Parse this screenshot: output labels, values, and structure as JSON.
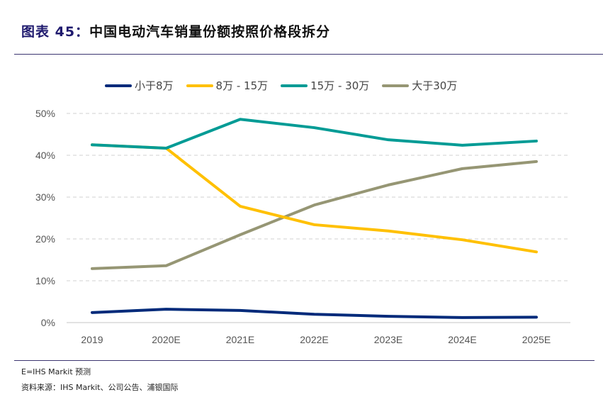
{
  "title": {
    "prefix": "图表 45：",
    "text": "中国电动汽车销量份额按照价格段拆分"
  },
  "chart_data": {
    "type": "line",
    "categories": [
      "2019",
      "2020E",
      "2021E",
      "2022E",
      "2023E",
      "2024E",
      "2025E"
    ],
    "ylim": [
      0,
      50
    ],
    "yticks": [
      "0%",
      "10%",
      "20%",
      "30%",
      "40%",
      "50%"
    ],
    "grid": true,
    "legend": "top",
    "series": [
      {
        "name": "小于8万",
        "color": "#002a7a",
        "values": [
          2.4,
          3.2,
          2.9,
          2.0,
          1.5,
          1.2,
          1.3
        ]
      },
      {
        "name": "8万 - 15万",
        "color": "#ffc000",
        "values": [
          42.5,
          41.7,
          27.8,
          23.4,
          21.9,
          19.8,
          16.9
        ]
      },
      {
        "name": "15万 - 30万",
        "color": "#009b95",
        "values": [
          42.5,
          41.7,
          48.6,
          46.6,
          43.7,
          42.4,
          43.4
        ]
      },
      {
        "name": "大于30万",
        "color": "#969674",
        "values": [
          12.9,
          13.6,
          21.0,
          28.1,
          32.9,
          36.8,
          38.5
        ]
      }
    ]
  },
  "notes": {
    "line1": "E=IHS Markit 预测",
    "line2": "资料来源：IHS Markit、公司公告、浦银国际"
  }
}
